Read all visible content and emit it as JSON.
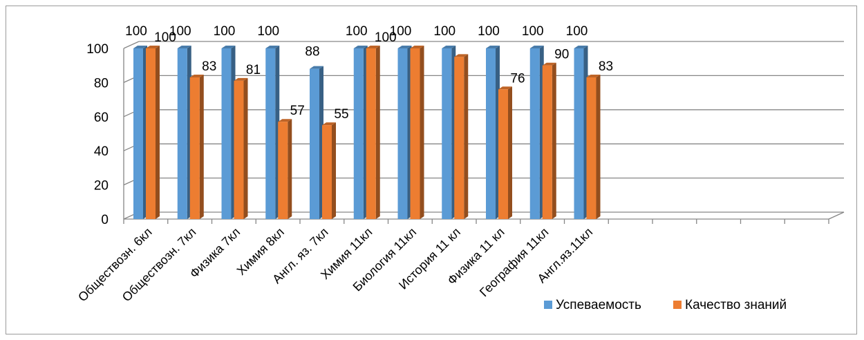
{
  "chart_data": {
    "type": "bar",
    "title": "",
    "xlabel": "",
    "ylabel": "",
    "ylim": [
      0,
      100
    ],
    "yticks": [
      "0",
      "20",
      "40",
      "60",
      "80",
      "100"
    ],
    "grid": true,
    "legend_position": "bottom-right",
    "categories": [
      "Обществозн. 6кл",
      "Обществозн. 7кл",
      "Физика 7кл",
      "Химия 8кл",
      "Англ. яз. 7кл",
      "Химия 11кл",
      "Биология 11кл",
      "История 11 кл",
      "Физика 11 кл",
      "География 11кл",
      "Англ.яз.11кл"
    ],
    "series": [
      {
        "name": "Успеваемость",
        "color": "#5b9bd5",
        "values": [
          100,
          100,
          100,
          100,
          88,
          100,
          100,
          100,
          100,
          100,
          100
        ],
        "labels": [
          "100",
          "100",
          "100",
          "100",
          "88",
          "100",
          "100",
          "100",
          "100",
          "100",
          "100"
        ]
      },
      {
        "name": "Качество знаний",
        "color": "#ed7d31",
        "values": [
          100,
          83,
          81,
          57,
          55,
          100,
          100,
          95,
          76,
          90,
          83
        ],
        "labels": [
          "100",
          "83",
          "81",
          "57",
          "55",
          "100",
          "",
          "",
          "76",
          "90",
          "83"
        ]
      }
    ]
  }
}
